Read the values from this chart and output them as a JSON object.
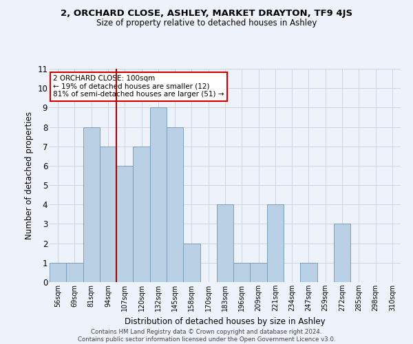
{
  "title1": "2, ORCHARD CLOSE, ASHLEY, MARKET DRAYTON, TF9 4JS",
  "title2": "Size of property relative to detached houses in Ashley",
  "xlabel": "Distribution of detached houses by size in Ashley",
  "ylabel": "Number of detached properties",
  "categories": [
    "56sqm",
    "69sqm",
    "81sqm",
    "94sqm",
    "107sqm",
    "120sqm",
    "132sqm",
    "145sqm",
    "158sqm",
    "170sqm",
    "183sqm",
    "196sqm",
    "209sqm",
    "221sqm",
    "234sqm",
    "247sqm",
    "259sqm",
    "272sqm",
    "285sqm",
    "298sqm",
    "310sqm"
  ],
  "values": [
    1,
    1,
    8,
    7,
    6,
    7,
    9,
    8,
    2,
    0,
    4,
    1,
    1,
    4,
    0,
    1,
    0,
    3,
    0,
    0,
    0
  ],
  "bar_color": "#bad0e4",
  "bar_edge_color": "#7aa0be",
  "vline_x": 3.5,
  "vline_color": "#aa0000",
  "ylim": [
    0,
    11
  ],
  "yticks": [
    0,
    1,
    2,
    3,
    4,
    5,
    6,
    7,
    8,
    9,
    10,
    11
  ],
  "annotation_text": "2 ORCHARD CLOSE: 100sqm\n← 19% of detached houses are smaller (12)\n81% of semi-detached houses are larger (51) →",
  "annotation_box_color": "#ffffff",
  "annotation_box_edge": "#cc0000",
  "footer1": "Contains HM Land Registry data © Crown copyright and database right 2024.",
  "footer2": "Contains public sector information licensed under the Open Government Licence v3.0.",
  "background_color": "#eef2fa",
  "grid_color": "#c8d0de"
}
